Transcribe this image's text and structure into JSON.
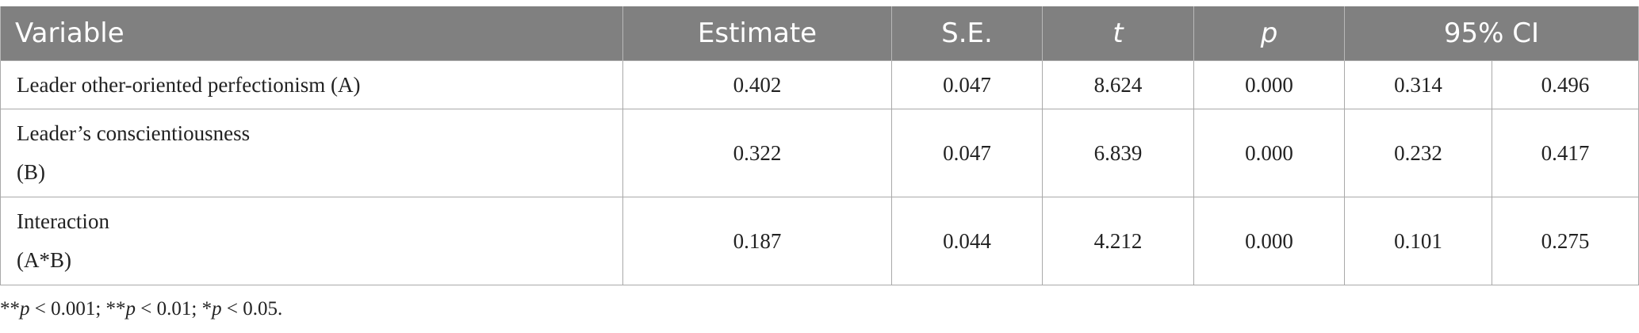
{
  "table": {
    "headers": {
      "variable": "Variable",
      "estimate": "Estimate",
      "se": "S.E.",
      "t": "t",
      "p": "p",
      "ci": "95% CI"
    },
    "rows": [
      {
        "variable_lines": [
          "Leader other-oriented perfectionism (A)"
        ],
        "estimate": "0.402",
        "se": "0.047",
        "t": "8.624",
        "p": "0.000",
        "ci_low": "0.314",
        "ci_high": "0.496"
      },
      {
        "variable_lines": [
          "Leader’s conscientiousness",
          "(B)"
        ],
        "estimate": "0.322",
        "se": "0.047",
        "t": "6.839",
        "p": "0.000",
        "ci_low": "0.232",
        "ci_high": "0.417"
      },
      {
        "variable_lines": [
          "Interaction",
          "(A*B)"
        ],
        "estimate": "0.187",
        "se": "0.044",
        "t": "4.212",
        "p": "0.000",
        "ci_low": "0.101",
        "ci_high": "0.275"
      }
    ]
  },
  "footnote": {
    "parts": [
      {
        "text": "**",
        "italic": false
      },
      {
        "text": "p",
        "italic": true
      },
      {
        "text": " < 0.001; **",
        "italic": false
      },
      {
        "text": "p",
        "italic": true
      },
      {
        "text": " < 0.01; *",
        "italic": false
      },
      {
        "text": "p",
        "italic": true
      },
      {
        "text": " < 0.05.",
        "italic": false
      }
    ]
  }
}
